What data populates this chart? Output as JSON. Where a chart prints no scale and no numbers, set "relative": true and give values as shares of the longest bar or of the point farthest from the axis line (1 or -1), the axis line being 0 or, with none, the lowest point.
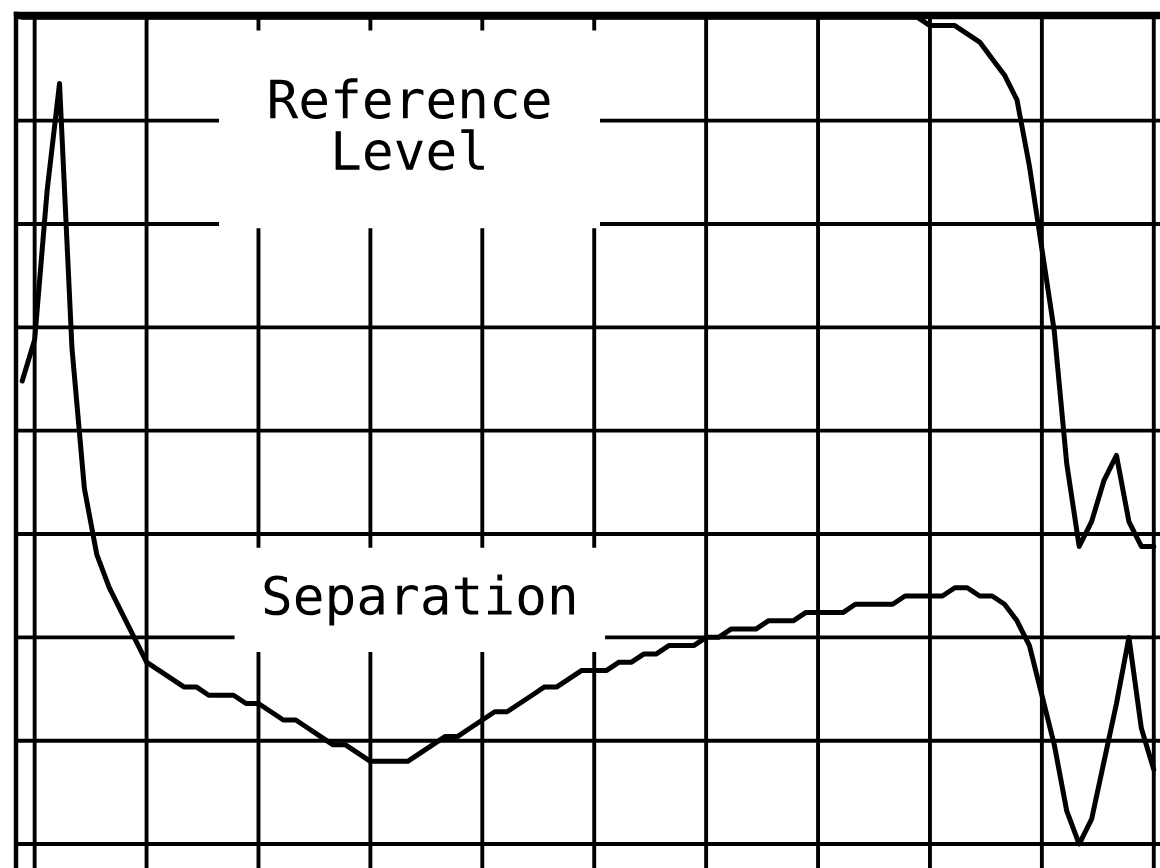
{
  "chart_data": {
    "type": "line",
    "relative": true,
    "grid": true,
    "categories": [
      null,
      null,
      null,
      null,
      null,
      null,
      null,
      null,
      null,
      null,
      null,
      null,
      null,
      null,
      null,
      null,
      null,
      null,
      null,
      null,
      null,
      null,
      null,
      null,
      null,
      null,
      null,
      null,
      null,
      null,
      null,
      null,
      null,
      null,
      null,
      null,
      null,
      null,
      null,
      null,
      null,
      null,
      null,
      null,
      null,
      null,
      null,
      null,
      null,
      null,
      null,
      null,
      null,
      null,
      null,
      null,
      null,
      null,
      null,
      null,
      null,
      null,
      null,
      null,
      null,
      null,
      null,
      null,
      null,
      null,
      null,
      null,
      null,
      null,
      null,
      null,
      null,
      null,
      null,
      null,
      null,
      null,
      null,
      null,
      null,
      null,
      null,
      null,
      null,
      null,
      null,
      null
    ],
    "series": [
      {
        "name": "Reference Level",
        "color": "#000000",
        "values": [
          1.0,
          1.0,
          1.0,
          1.0,
          1.0,
          1.0,
          1.0,
          1.0,
          1.0,
          1.0,
          1.0,
          1.0,
          1.0,
          1.0,
          1.0,
          1.0,
          1.0,
          1.0,
          1.0,
          1.0,
          1.0,
          1.0,
          1.0,
          1.0,
          1.0,
          1.0,
          1.0,
          1.0,
          1.0,
          1.0,
          1.0,
          1.0,
          1.0,
          1.0,
          1.0,
          1.0,
          1.0,
          1.0,
          1.0,
          1.0,
          1.0,
          1.0,
          1.0,
          1.0,
          1.0,
          1.0,
          1.0,
          1.0,
          1.0,
          1.0,
          1.0,
          1.0,
          1.0,
          1.0,
          1.0,
          1.0,
          1.0,
          1.0,
          1.0,
          1.0,
          1.0,
          1.0,
          1.0,
          1.0,
          1.0,
          1.0,
          1.0,
          1.0,
          1.0,
          1.0,
          1.0,
          1.0,
          1.0,
          0.99,
          0.99,
          0.99,
          0.98,
          0.97,
          0.95,
          0.93,
          0.9,
          0.82,
          0.72,
          0.62,
          0.46,
          0.36,
          0.39,
          0.44,
          0.47,
          0.39,
          0.36,
          0.36
        ]
      },
      {
        "name": "Separation",
        "color": "#000000",
        "values": [
          0.56,
          0.61,
          0.79,
          0.92,
          0.6,
          0.43,
          0.35,
          0.31,
          0.28,
          0.25,
          0.22,
          0.21,
          0.2,
          0.19,
          0.19,
          0.18,
          0.18,
          0.18,
          0.17,
          0.17,
          0.16,
          0.15,
          0.15,
          0.14,
          0.13,
          0.12,
          0.12,
          0.11,
          0.1,
          0.1,
          0.1,
          0.1,
          0.11,
          0.12,
          0.13,
          0.13,
          0.14,
          0.15,
          0.16,
          0.16,
          0.17,
          0.18,
          0.19,
          0.19,
          0.2,
          0.21,
          0.21,
          0.21,
          0.22,
          0.22,
          0.23,
          0.23,
          0.24,
          0.24,
          0.24,
          0.25,
          0.25,
          0.26,
          0.26,
          0.26,
          0.27,
          0.27,
          0.27,
          0.28,
          0.28,
          0.28,
          0.28,
          0.29,
          0.29,
          0.29,
          0.29,
          0.3,
          0.3,
          0.3,
          0.3,
          0.31,
          0.31,
          0.3,
          0.3,
          0.29,
          0.27,
          0.24,
          0.18,
          0.12,
          0.04,
          0.0,
          0.03,
          0.1,
          0.17,
          0.25,
          0.14,
          0.09
        ]
      }
    ]
  }
}
